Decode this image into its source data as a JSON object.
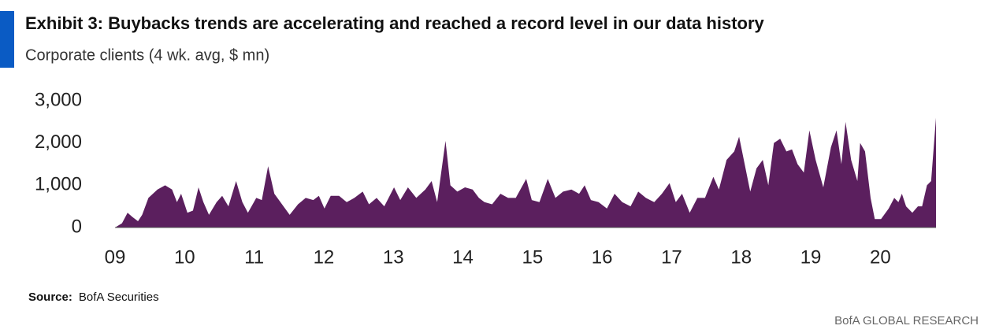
{
  "chart_data": {
    "type": "area",
    "title": "Exhibit 3: Buybacks trends are accelerating and reached a record level in our data history",
    "subtitle": "Corporate clients (4 wk. avg, $ mn)",
    "source_label": "Source:",
    "source": "BofA Securities",
    "footer": "BofA GLOBAL RESEARCH",
    "color": "#5b1f5e",
    "xlim": [
      2009,
      2020.8
    ],
    "ylim": [
      0,
      3000
    ],
    "xticks": [
      {
        "value": 2009,
        "label": "09"
      },
      {
        "value": 2010,
        "label": "10"
      },
      {
        "value": 2011,
        "label": "11"
      },
      {
        "value": 2012,
        "label": "12"
      },
      {
        "value": 2013,
        "label": "13"
      },
      {
        "value": 2014,
        "label": "14"
      },
      {
        "value": 2015,
        "label": "15"
      },
      {
        "value": 2016,
        "label": "16"
      },
      {
        "value": 2017,
        "label": "17"
      },
      {
        "value": 2018,
        "label": "18"
      },
      {
        "value": 2019,
        "label": "19"
      },
      {
        "value": 2020,
        "label": "20"
      }
    ],
    "yticks": [
      0,
      {
        "value": 1000,
        "label": "1,000"
      },
      {
        "value": 2000,
        "label": "2,000"
      },
      {
        "value": 3000,
        "label": "3,000"
      }
    ],
    "x": [
      2009.0,
      2009.1,
      2009.18,
      2009.25,
      2009.33,
      2009.39,
      2009.48,
      2009.61,
      2009.72,
      2009.82,
      2009.89,
      2009.95,
      2010.04,
      2010.12,
      2010.2,
      2010.27,
      2010.35,
      2010.46,
      2010.54,
      2010.63,
      2010.74,
      2010.83,
      2010.91,
      2011.03,
      2011.11,
      2011.2,
      2011.29,
      2011.4,
      2011.51,
      2011.63,
      2011.74,
      2011.85,
      2011.93,
      2012.01,
      2012.1,
      2012.22,
      2012.33,
      2012.44,
      2012.56,
      2012.65,
      2012.76,
      2012.87,
      2013.01,
      2013.1,
      2013.21,
      2013.33,
      2013.46,
      2013.55,
      2013.63,
      2013.75,
      2013.82,
      2013.92,
      2014.03,
      2014.14,
      2014.23,
      2014.31,
      2014.42,
      2014.54,
      2014.65,
      2014.76,
      2014.91,
      2014.99,
      2015.1,
      2015.22,
      2015.33,
      2015.44,
      2015.56,
      2015.67,
      2015.75,
      2015.84,
      2015.95,
      2016.07,
      2016.18,
      2016.29,
      2016.41,
      2016.52,
      2016.63,
      2016.75,
      2016.86,
      2016.97,
      2017.06,
      2017.15,
      2017.26,
      2017.37,
      2017.48,
      2017.6,
      2017.68,
      2017.79,
      2017.9,
      2017.97,
      2018.05,
      2018.13,
      2018.22,
      2018.31,
      2018.39,
      2018.47,
      2018.56,
      2018.65,
      2018.73,
      2018.81,
      2018.9,
      2018.98,
      2019.07,
      2019.18,
      2019.29,
      2019.37,
      2019.44,
      2019.5,
      2019.58,
      2019.67,
      2019.71,
      2019.78,
      2019.86,
      2019.92,
      2020.01,
      2020.12,
      2020.2,
      2020.26,
      2020.31,
      2020.37,
      2020.46,
      2020.54,
      2020.6,
      2020.67,
      2020.73,
      2020.8
    ],
    "values": [
      0,
      100,
      350,
      250,
      150,
      300,
      700,
      900,
      1000,
      900,
      600,
      800,
      350,
      400,
      950,
      600,
      300,
      600,
      750,
      500,
      1100,
      600,
      350,
      700,
      650,
      1450,
      800,
      550,
      300,
      550,
      700,
      650,
      750,
      450,
      750,
      750,
      600,
      700,
      850,
      550,
      700,
      500,
      950,
      650,
      950,
      700,
      900,
      1100,
      600,
      2050,
      1000,
      850,
      950,
      900,
      700,
      600,
      550,
      800,
      700,
      700,
      1150,
      650,
      600,
      1150,
      700,
      850,
      900,
      800,
      1000,
      650,
      600,
      450,
      800,
      600,
      500,
      850,
      700,
      600,
      800,
      1050,
      600,
      800,
      350,
      700,
      700,
      1200,
      900,
      1600,
      1800,
      2150,
      1500,
      850,
      1400,
      1600,
      1000,
      2000,
      2100,
      1800,
      1850,
      1500,
      1300,
      2300,
      1600,
      950,
      1900,
      2300,
      1500,
      2500,
      1600,
      1100,
      2000,
      1800,
      700,
      200,
      200,
      450,
      700,
      600,
      800,
      500,
      350,
      500,
      500,
      1000,
      1100,
      2600
    ]
  }
}
